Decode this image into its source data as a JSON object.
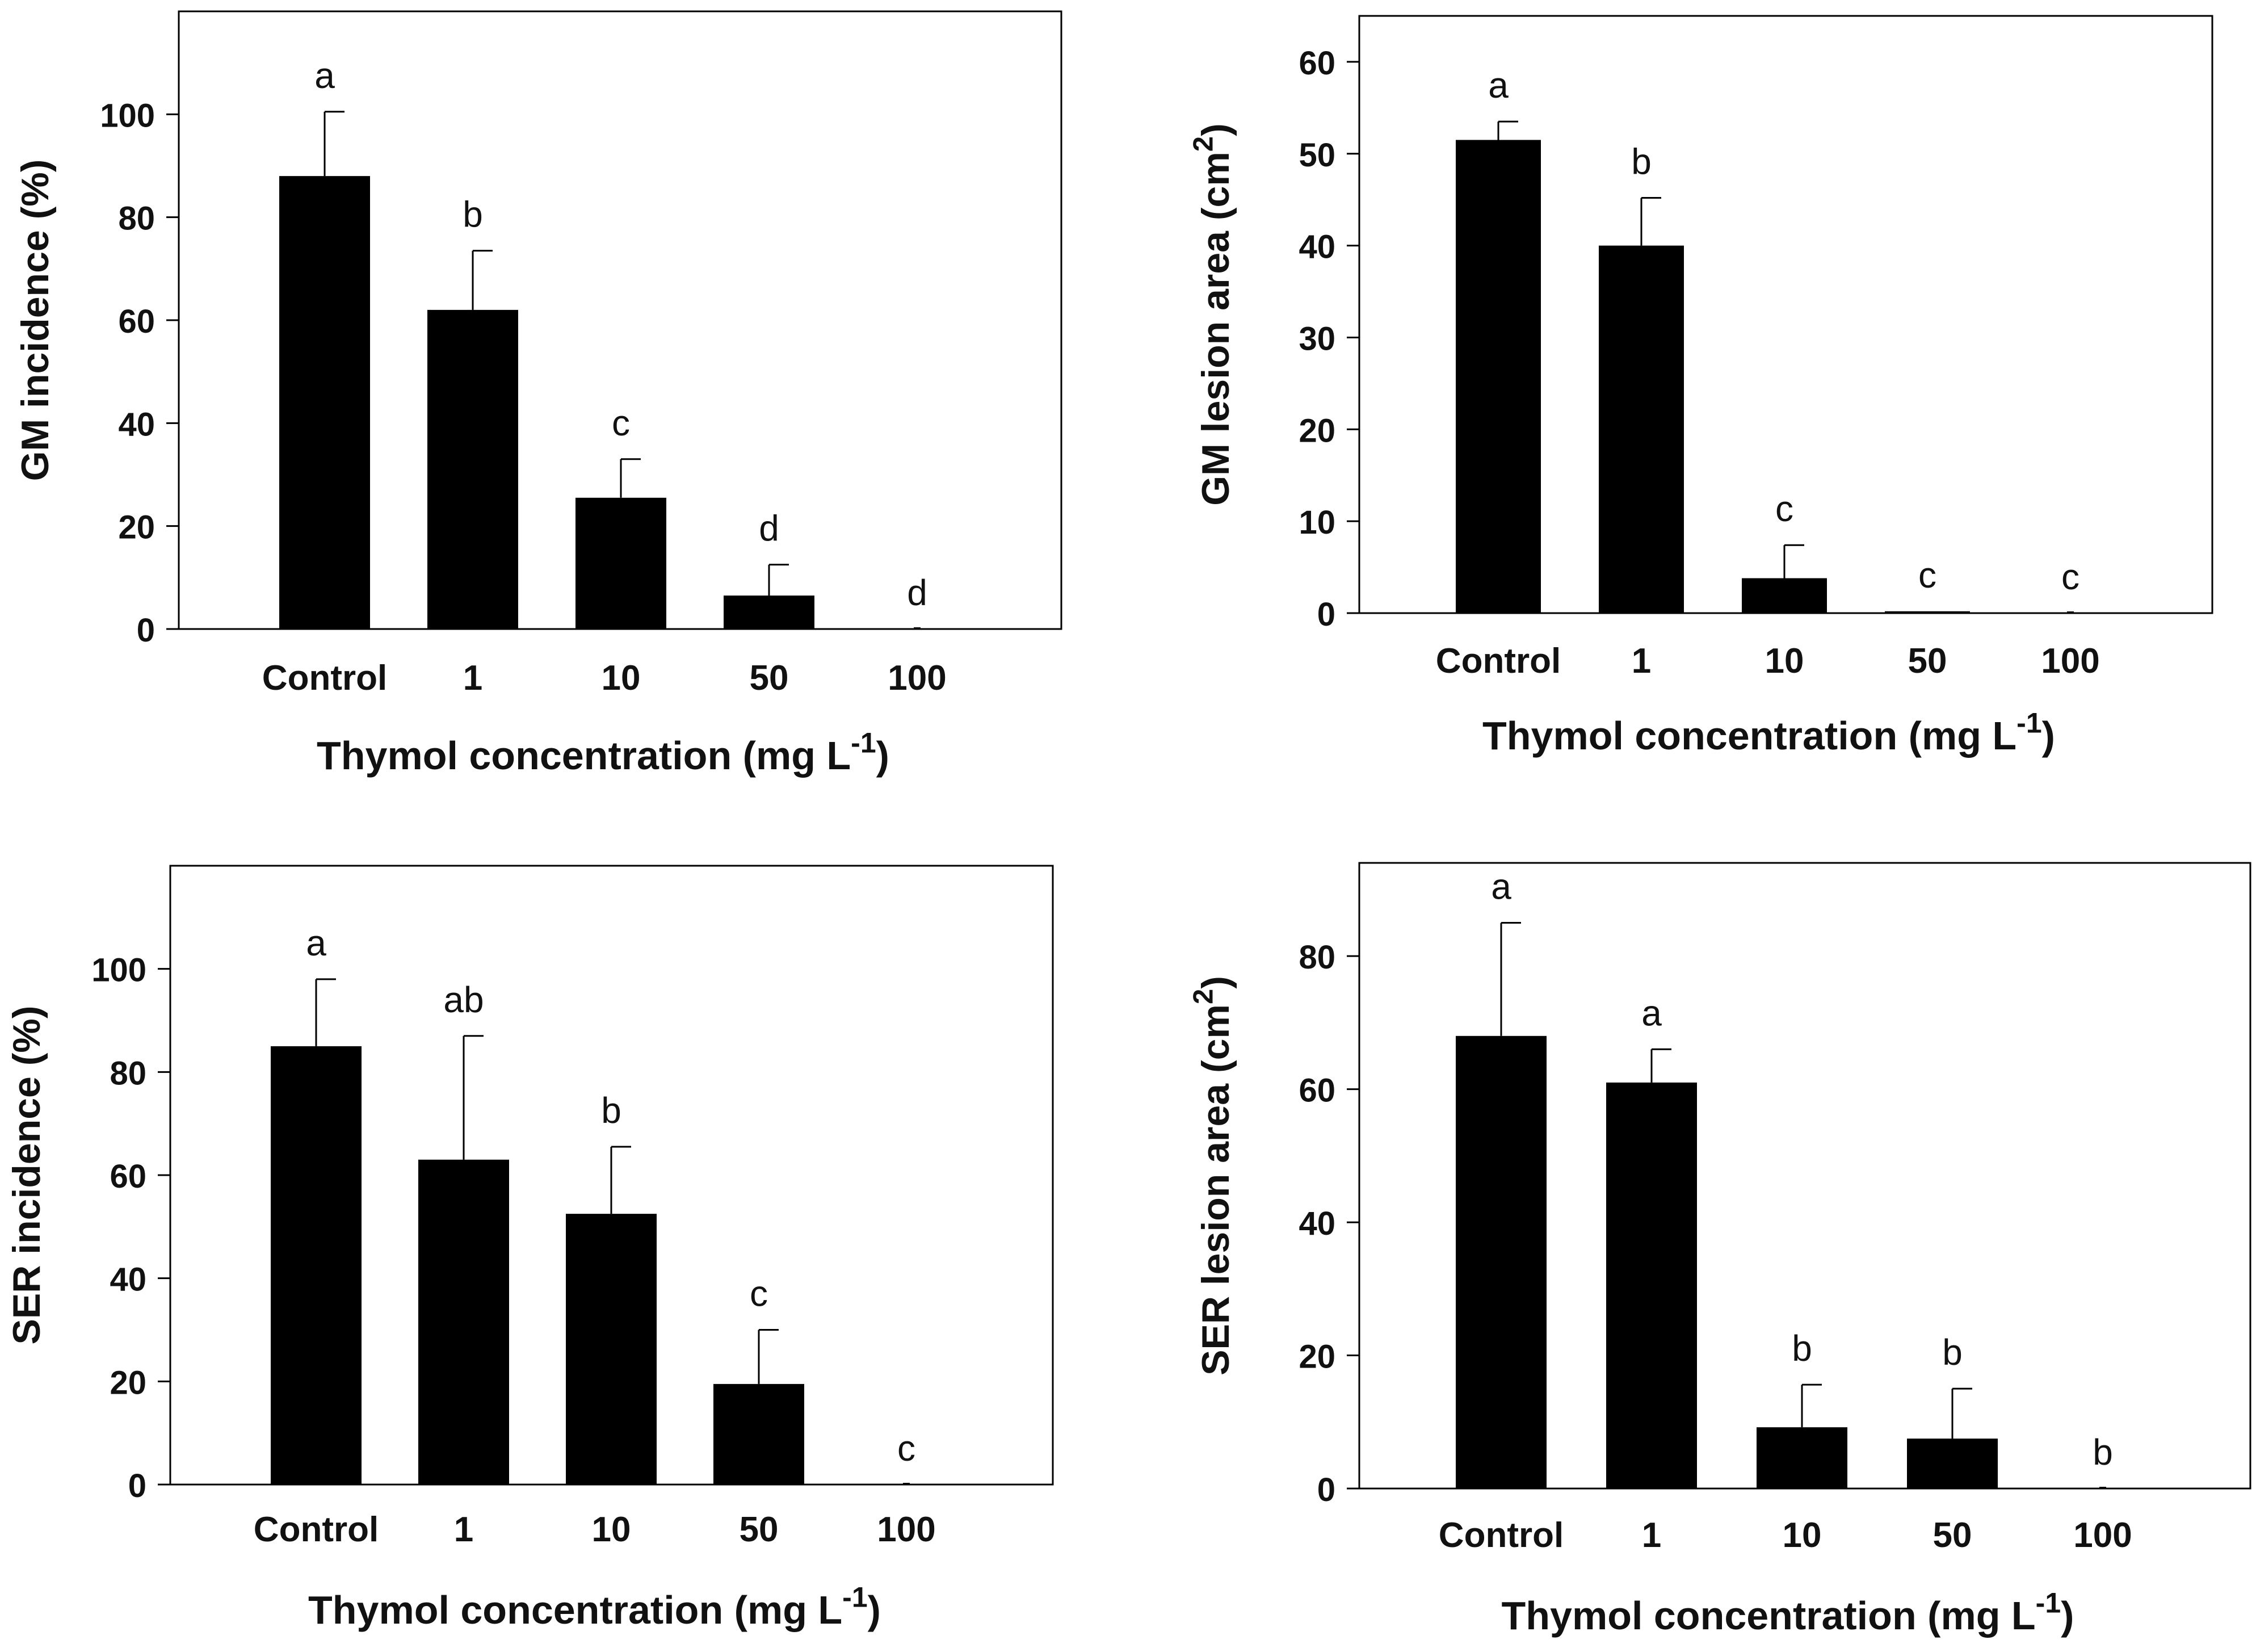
{
  "chart_data": [
    {
      "type": "bar",
      "panel": "top-left",
      "categories": [
        "Control",
        "1",
        "10",
        "50",
        "100"
      ],
      "values": [
        88,
        62,
        25.5,
        6.5,
        0
      ],
      "errors": [
        12.5,
        11.5,
        7.5,
        6,
        0
      ],
      "letters": [
        "a",
        "b",
        "c",
        "d",
        "d"
      ],
      "ylabel_main": "GM incidence (%)",
      "ylabel_sup": "",
      "ylabel_tail": "",
      "xlabel_main": "Thymol concentration (mg L",
      "xlabel_sup": "-1",
      "xlabel_tail": ")",
      "ylim": [
        0,
        120
      ],
      "yticks": [
        0,
        20,
        40,
        60,
        80,
        100
      ]
    },
    {
      "type": "bar",
      "panel": "top-right",
      "categories": [
        "Control",
        "1",
        "10",
        "50",
        "100"
      ],
      "values": [
        51.5,
        40,
        3.8,
        0.2,
        0
      ],
      "errors": [
        2,
        5.2,
        3.6,
        0,
        0
      ],
      "letters": [
        "a",
        "b",
        "c",
        "c",
        "c"
      ],
      "ylabel_main": "GM lesion area (cm",
      "ylabel_sup": "2",
      "ylabel_tail": ")",
      "xlabel_main": "Thymol concentration (mg L",
      "xlabel_sup": "-1",
      "xlabel_tail": ")",
      "ylim": [
        0,
        65
      ],
      "yticks": [
        0,
        10,
        20,
        30,
        40,
        50,
        60
      ]
    },
    {
      "type": "bar",
      "panel": "bottom-left",
      "categories": [
        "Control",
        "1",
        "10",
        "50",
        "100"
      ],
      "values": [
        85,
        63,
        52.5,
        19.5,
        0
      ],
      "errors": [
        13,
        24,
        13,
        10.5,
        0
      ],
      "letters": [
        "a",
        "ab",
        "b",
        "c",
        "c"
      ],
      "ylabel_main": "SER incidence (%)",
      "ylabel_sup": "",
      "ylabel_tail": "",
      "xlabel_main": "Thymol concentration (mg L",
      "xlabel_sup": "-1",
      "xlabel_tail": ")",
      "ylim": [
        0,
        120
      ],
      "yticks": [
        0,
        20,
        40,
        60,
        80,
        100
      ]
    },
    {
      "type": "bar",
      "panel": "bottom-right",
      "categories": [
        "Control",
        "1",
        "10",
        "50",
        "100"
      ],
      "values": [
        68,
        61,
        9.2,
        7.5,
        0
      ],
      "errors": [
        17,
        5,
        6.4,
        7.5,
        0
      ],
      "letters": [
        "a",
        "a",
        "b",
        "b",
        "b"
      ],
      "ylabel_main": "SER lesion area (cm",
      "ylabel_sup": "2",
      "ylabel_tail": ")",
      "xlabel_main": "Thymol concentration (mg L",
      "xlabel_sup": "-1",
      "xlabel_tail": ")",
      "ylim": [
        0,
        94
      ],
      "yticks": [
        0,
        20,
        40,
        60,
        80
      ]
    }
  ]
}
